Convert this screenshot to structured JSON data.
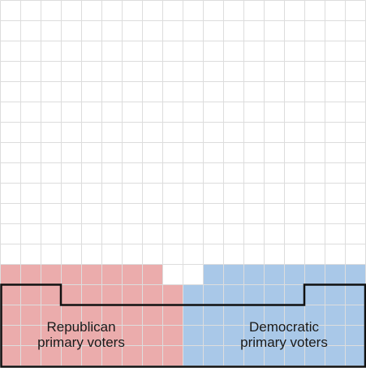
{
  "grid": {
    "columns": 18,
    "rows": 18,
    "line_color": "#dddddd"
  },
  "groups": [
    {
      "id": "republican",
      "label": "Republican\nprimary voters",
      "color": "#ebacac",
      "cells": 44
    },
    {
      "id": "democratic",
      "label": "Democratic\nprimary voters",
      "color": "#a9c8e8",
      "cells": 44
    }
  ],
  "outline_color": "#111111"
}
